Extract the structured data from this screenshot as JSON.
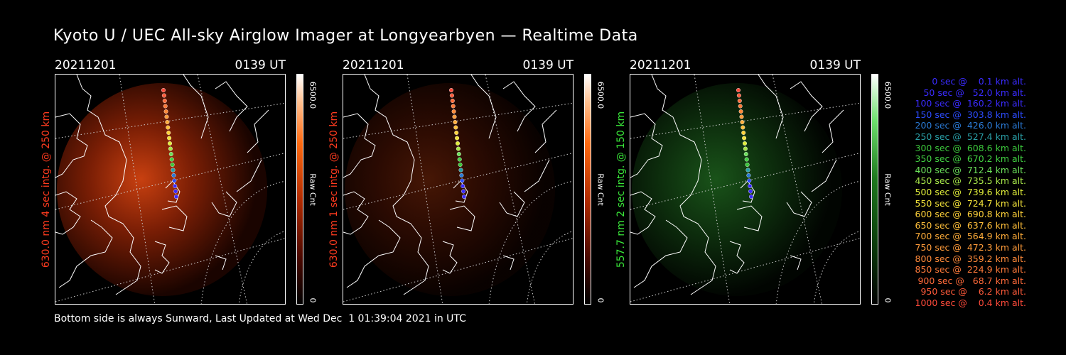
{
  "title": "Kyoto U / UEC All-sky Airglow Imager at Longyearbyen — Realtime Data",
  "footer": "Bottom side is always Sunward, Last Updated at Wed Dec  1 01:39:04 2021 in UTC",
  "panels": [
    {
      "date": "20211201",
      "time": "0139 UT",
      "side_label": "630.0 nm 4 sec intg. @ 250 km",
      "label_color": "#ff3b1f",
      "colorbar_max": "6500.0",
      "colorbar_unit": "Raw Cnt",
      "colorbar_min": "0",
      "palette": "red",
      "intensity": 1.0
    },
    {
      "date": "20211201",
      "time": "0139 UT",
      "side_label": "630.0 nm 1 sec intg. @ 250 km",
      "label_color": "#ff3b1f",
      "colorbar_max": "6500.0",
      "colorbar_unit": "Raw Cnt",
      "colorbar_min": "0",
      "palette": "red",
      "intensity": 0.35
    },
    {
      "date": "20211201",
      "time": "0139 UT",
      "side_label": "557.7 nm 2 sec intg. @ 150 km",
      "label_color": "#39e639",
      "colorbar_max": "6500.0",
      "colorbar_unit": "Raw Cnt",
      "colorbar_min": "0",
      "palette": "green",
      "intensity": 0.6
    }
  ],
  "legend": [
    {
      "text": "0 sec @    0.1 km alt.",
      "color": "#3a2bff"
    },
    {
      "text": "50 sec @   52.0 km alt.",
      "color": "#3a2bff"
    },
    {
      "text": "100 sec @  160.2 km alt.",
      "color": "#3a2bff"
    },
    {
      "text": "150 sec @  303.8 km alt.",
      "color": "#2c4cff"
    },
    {
      "text": "200 sec @  426.0 km alt.",
      "color": "#2a7ad6"
    },
    {
      "text": "250 sec @  527.4 km alt.",
      "color": "#2aa0a8"
    },
    {
      "text": "300 sec @  608.6 km alt.",
      "color": "#3cc83c"
    },
    {
      "text": "350 sec @  670.2 km alt.",
      "color": "#42d142"
    },
    {
      "text": "400 sec @  712.4 km alt.",
      "color": "#6be05a"
    },
    {
      "text": "450 sec @  735.5 km alt.",
      "color": "#a8e84a"
    },
    {
      "text": "500 sec @  739.6 km alt.",
      "color": "#e0ee3a"
    },
    {
      "text": "550 sec @  724.7 km alt.",
      "color": "#f2e23a"
    },
    {
      "text": "600 sec @  690.8 km alt.",
      "color": "#ffd23a"
    },
    {
      "text": "650 sec @  637.6 km alt.",
      "color": "#ffbf3a"
    },
    {
      "text": "700 sec @  564.9 km alt.",
      "color": "#ffad3a"
    },
    {
      "text": "750 sec @  472.3 km alt.",
      "color": "#ff9b3a"
    },
    {
      "text": "800 sec @  359.2 km alt.",
      "color": "#ff8a3a"
    },
    {
      "text": "850 sec @  224.9 km alt.",
      "color": "#ff7a3a"
    },
    {
      "text": "900 sec @   68.7 km alt.",
      "color": "#ff6a3a"
    },
    {
      "text": "950 sec @    6.2 km alt.",
      "color": "#ff5a3a"
    },
    {
      "text": "1000 sec @    0.4 km alt.",
      "color": "#ff4a3a"
    }
  ]
}
